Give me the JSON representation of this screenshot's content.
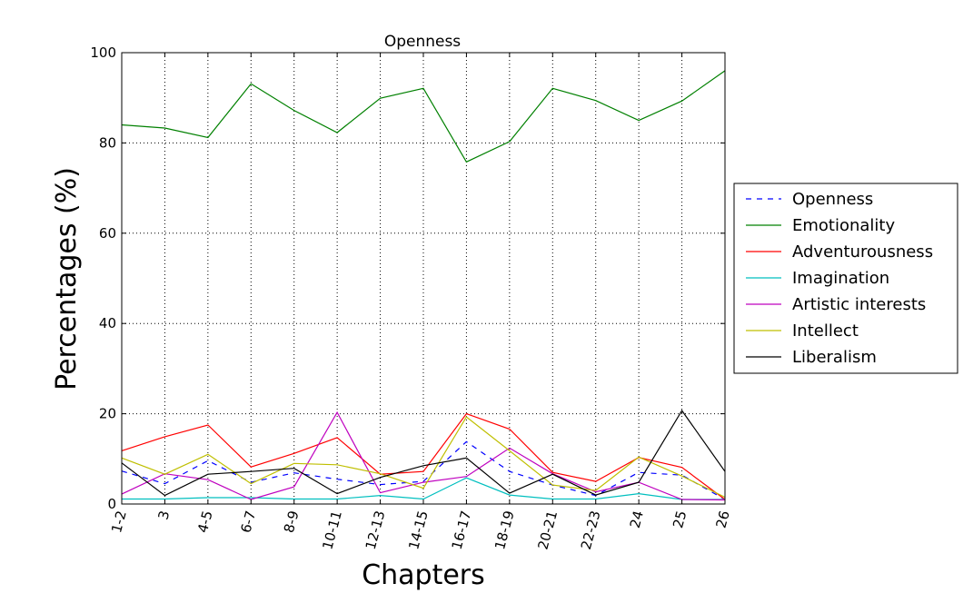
{
  "chart_data": {
    "type": "line",
    "title": "Openness",
    "xlabel": "Chapters",
    "ylabel": "Percentages (%)",
    "categories": [
      "1-2",
      "3",
      "4-5",
      "6-7",
      "8-9",
      "10-11",
      "12-13",
      "14-15",
      "16-17",
      "18-19",
      "20-21",
      "22-23",
      "24",
      "25",
      "26"
    ],
    "ylim": [
      0,
      100
    ],
    "yticks": [
      "0",
      "20",
      "40",
      "60",
      "80",
      "100"
    ],
    "grid": true,
    "legend_position": "right",
    "series": [
      {
        "name": "Openness",
        "color": "#0000ff",
        "dashed": true,
        "values": [
          7.3,
          4.5,
          9.6,
          4.8,
          6.9,
          5.5,
          4.3,
          5.0,
          13.8,
          7.2,
          4.2,
          1.9,
          7.0,
          6.4,
          1.0
        ]
      },
      {
        "name": "Emotionality",
        "color": "#008000",
        "dashed": false,
        "values": [
          84.0,
          83.3,
          81.2,
          93.1,
          87.2,
          82.3,
          89.9,
          92.1,
          75.8,
          80.3,
          92.1,
          89.4,
          85.0,
          89.3,
          96.0
        ]
      },
      {
        "name": "Adventurousness",
        "color": "#ff0000",
        "dashed": false,
        "values": [
          11.8,
          14.9,
          17.5,
          8.2,
          11.2,
          14.7,
          6.6,
          7.2,
          20.0,
          16.6,
          7.0,
          5.0,
          10.3,
          8.1,
          1.0
        ]
      },
      {
        "name": "Imagination",
        "color": "#00bfbf",
        "dashed": false,
        "values": [
          1.1,
          1.1,
          1.4,
          1.4,
          1.1,
          1.1,
          1.9,
          1.1,
          5.8,
          2.0,
          1.1,
          1.1,
          2.3,
          1.0,
          1.0
        ]
      },
      {
        "name": "Artistic interests",
        "color": "#bf00bf",
        "dashed": false,
        "values": [
          2.2,
          6.7,
          5.4,
          1.0,
          3.8,
          20.3,
          2.5,
          4.8,
          6.1,
          12.4,
          6.7,
          2.7,
          4.8,
          1.0,
          0.9
        ]
      },
      {
        "name": "Intellect",
        "color": "#bfbf00",
        "dashed": false,
        "values": [
          10.2,
          6.6,
          11.0,
          4.5,
          9.0,
          8.7,
          6.7,
          3.5,
          19.3,
          11.8,
          4.2,
          3.0,
          10.4,
          6.2,
          1.5
        ]
      },
      {
        "name": "Liberalism",
        "color": "#000000",
        "dashed": false,
        "values": [
          9.1,
          1.9,
          6.6,
          7.2,
          7.9,
          2.3,
          5.9,
          8.5,
          10.2,
          2.4,
          6.6,
          2.0,
          4.8,
          20.7,
          7.2
        ]
      }
    ]
  }
}
